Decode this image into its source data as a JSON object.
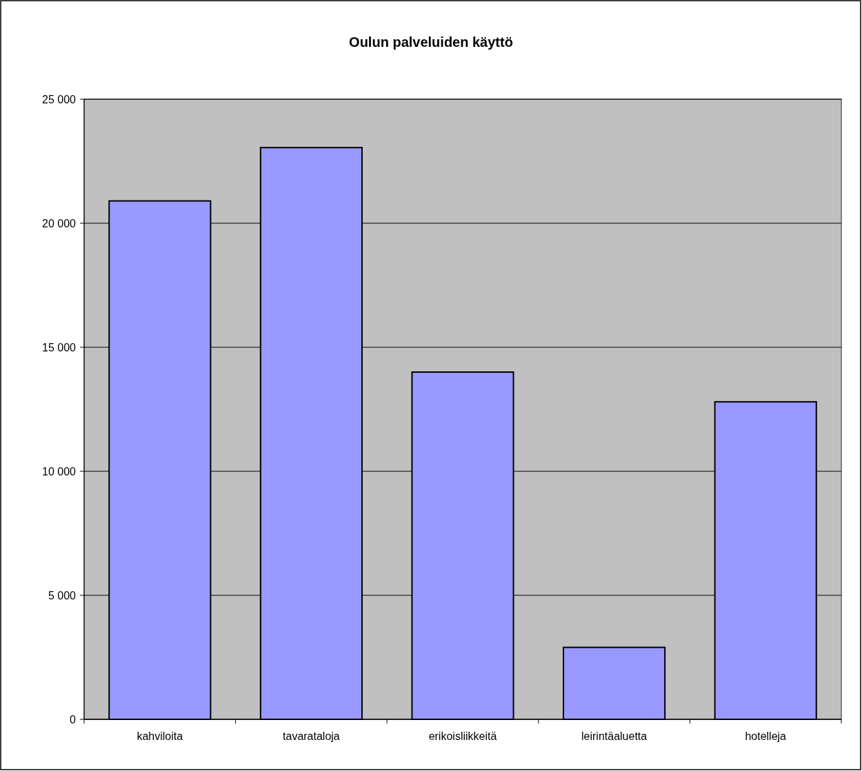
{
  "chart_data": {
    "type": "bar",
    "title": "Oulun palveluiden käyttö",
    "categories": [
      "kahviloita",
      "tavarataloja",
      "erikoisliikkeitä",
      "leirintäaluetta",
      "hotelleja"
    ],
    "values": [
      20900,
      23050,
      14000,
      2900,
      12800
    ],
    "color": "#9999ff",
    "ylim": [
      0,
      25000
    ],
    "yticks": [
      0,
      {
        "value": 5000,
        "label": "5 000"
      },
      {
        "value": 10000,
        "label": "10 000"
      },
      {
        "value": 15000,
        "label": "15 000"
      },
      {
        "value": 20000,
        "label": "20 000"
      },
      {
        "value": 25000,
        "label": "25 000"
      }
    ],
    "grid": "y"
  }
}
